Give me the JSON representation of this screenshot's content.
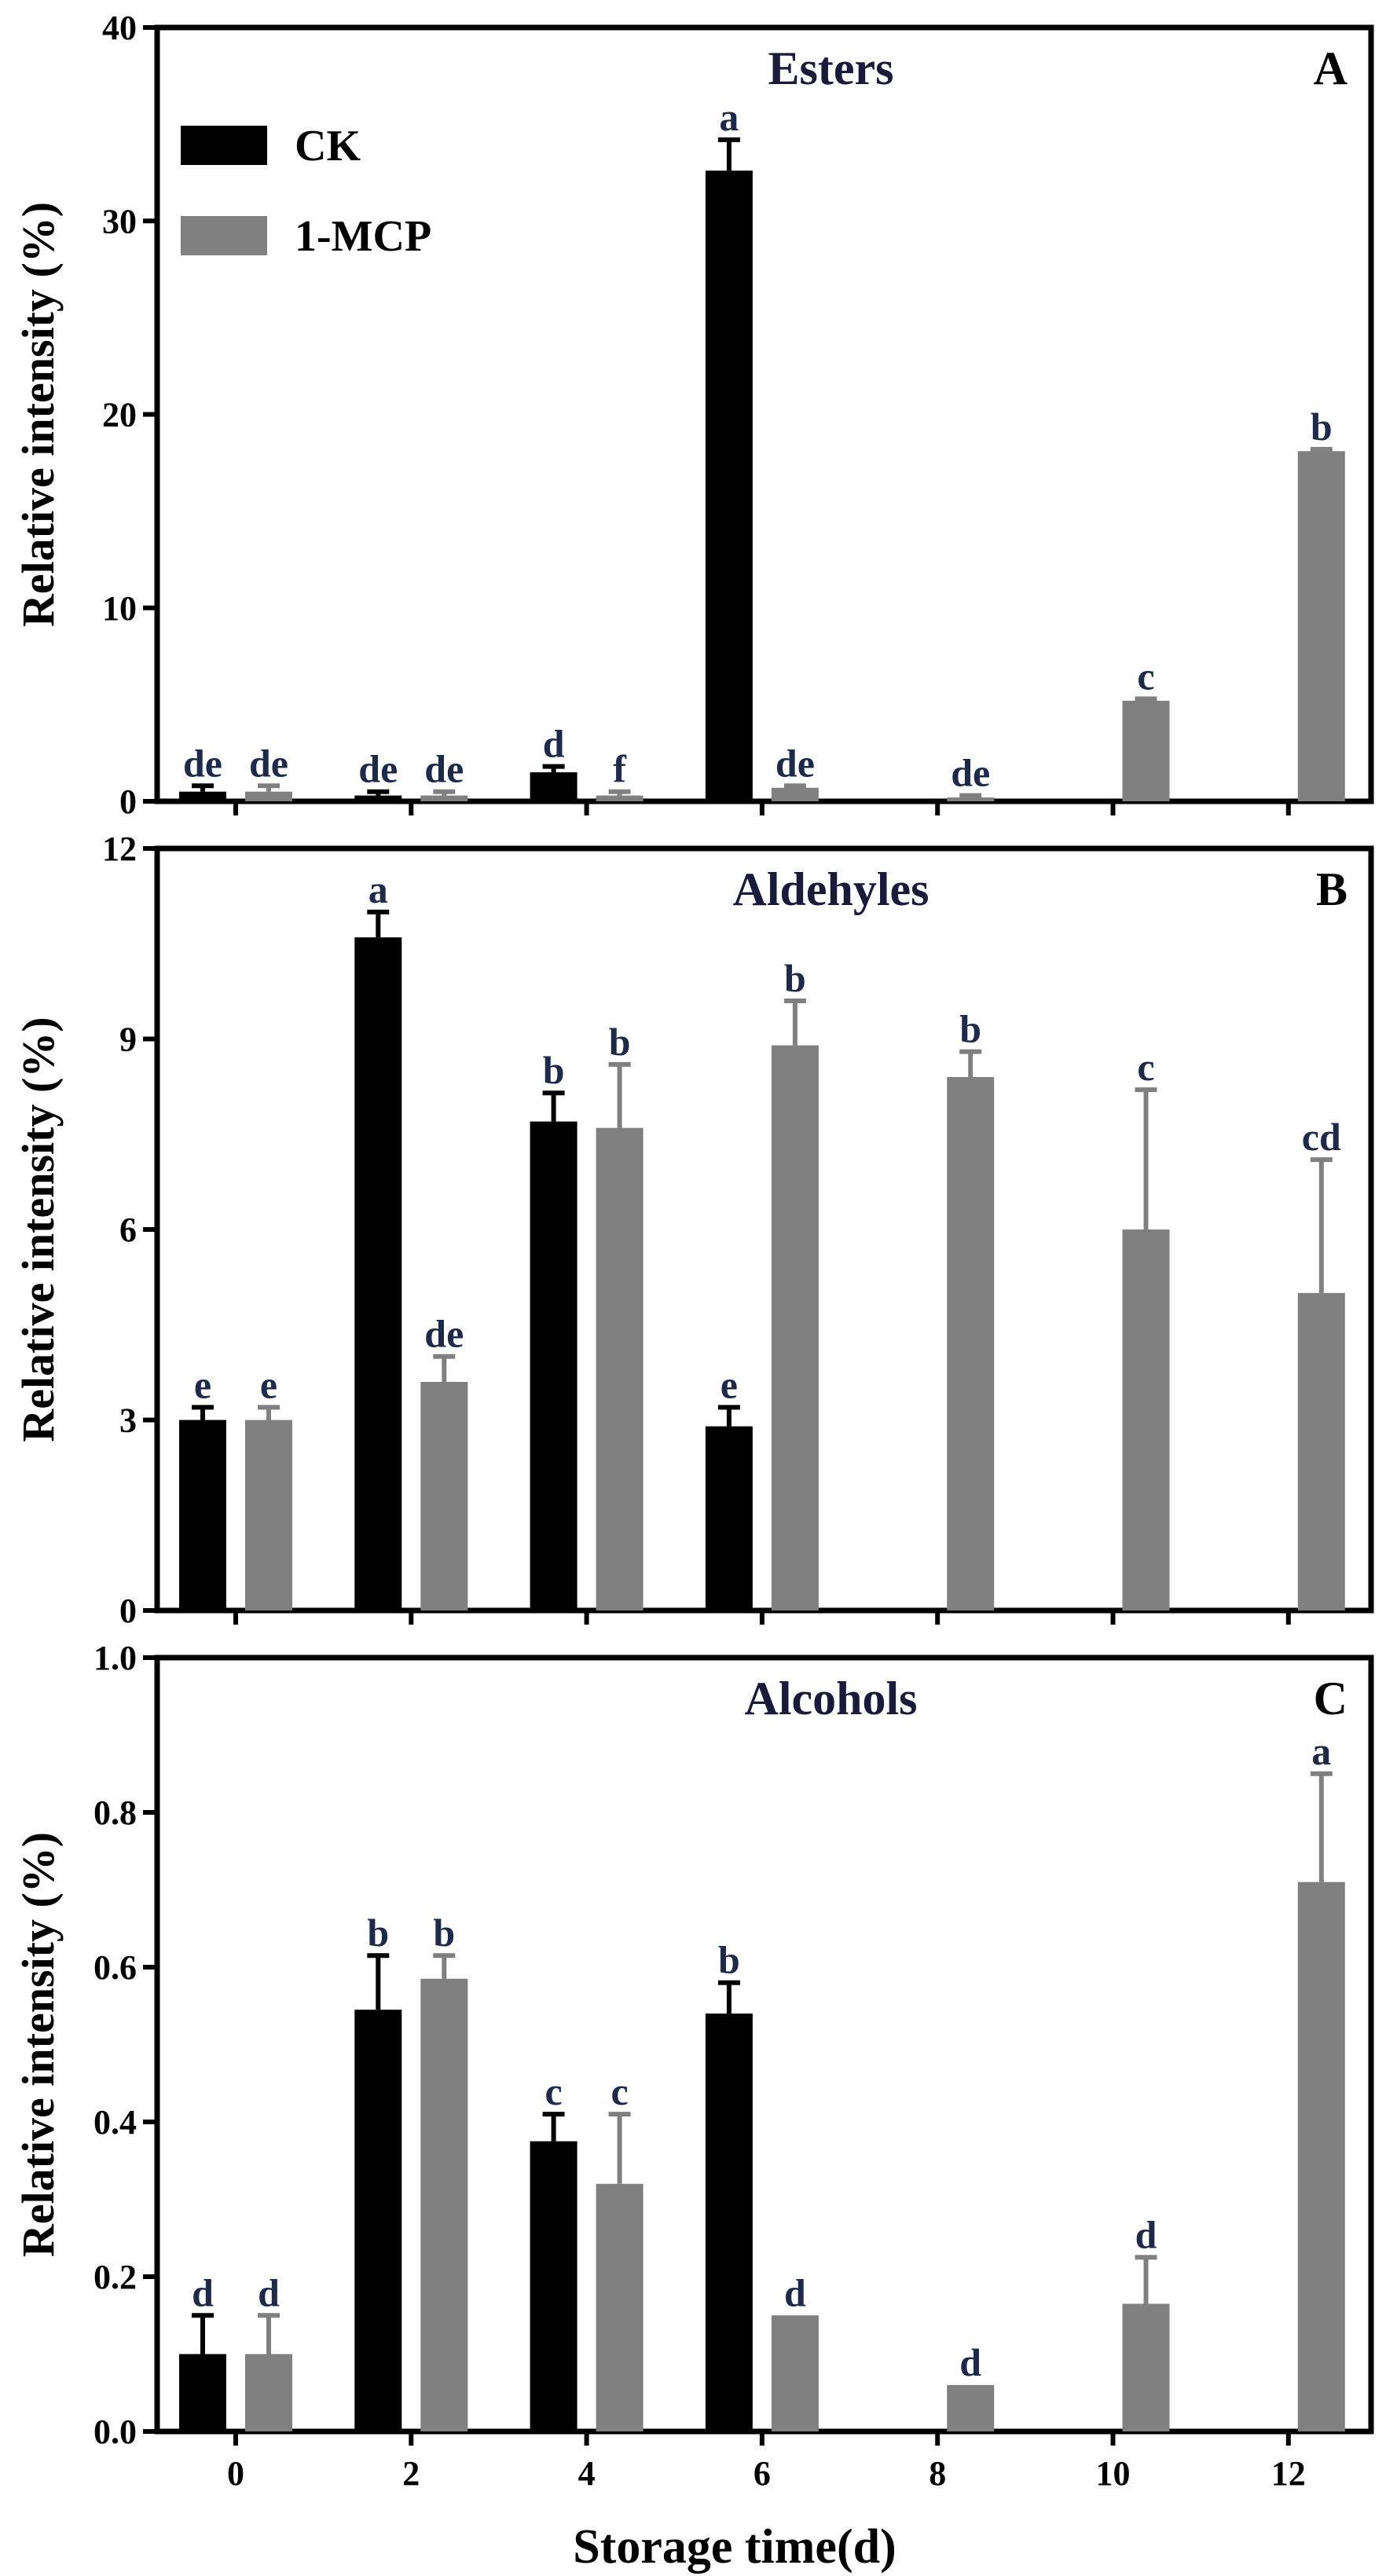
{
  "figure": {
    "xlabel": "Storage time(d)",
    "legend": {
      "placement": "top-left",
      "panel": 0
    }
  },
  "colors": {
    "ck": "#000000",
    "mcp": "#808080",
    "sig_text": "#1e2a4a",
    "axis": "#000000"
  },
  "chart_data": [
    {
      "type": "bar",
      "panel_letter": "A",
      "title": "Esters",
      "xlabel": "Storage time(d)",
      "ylabel": "Relative intensity (%)",
      "ylim": [
        0,
        40
      ],
      "yticks": [
        0,
        10,
        20,
        30,
        40
      ],
      "ytick_labels": [
        "0",
        "10",
        "20",
        "30",
        "40"
      ],
      "categories": [
        "0",
        "2",
        "4",
        "6",
        "8",
        "10",
        "12"
      ],
      "series": [
        {
          "name": "CK",
          "values": [
            0.5,
            0.3,
            1.5,
            32.6,
            null,
            null,
            null
          ],
          "errors": [
            0.3,
            0.2,
            0.3,
            1.6,
            null,
            null,
            null
          ],
          "labels": [
            "de",
            "de",
            "d",
            "a",
            null,
            null,
            null
          ]
        },
        {
          "name": "1-MCP",
          "values": [
            0.5,
            0.3,
            0.3,
            0.7,
            0.2,
            5.2,
            18.1
          ],
          "errors": [
            0.3,
            0.2,
            0.2,
            0.1,
            0.1,
            0.1,
            0.1
          ],
          "labels": [
            "de",
            "de",
            "f",
            "de",
            "de",
            "c",
            "b"
          ]
        }
      ]
    },
    {
      "type": "bar",
      "panel_letter": "B",
      "title": "Aldehyles",
      "xlabel": "Storage time(d)",
      "ylabel": "Relative intensity (%)",
      "ylim": [
        0,
        12
      ],
      "yticks": [
        0,
        3,
        6,
        9,
        12
      ],
      "ytick_labels": [
        "0",
        "3",
        "6",
        "9",
        "12"
      ],
      "categories": [
        "0",
        "2",
        "4",
        "6",
        "8",
        "10",
        "12"
      ],
      "series": [
        {
          "name": "CK",
          "values": [
            3.0,
            10.6,
            7.7,
            2.9,
            null,
            null,
            null
          ],
          "errors": [
            0.2,
            0.4,
            0.45,
            0.3,
            null,
            null,
            null
          ],
          "labels": [
            "e",
            "a",
            "b",
            "e",
            null,
            null,
            null
          ]
        },
        {
          "name": "1-MCP",
          "values": [
            3.0,
            3.6,
            7.6,
            8.9,
            8.4,
            6.0,
            5.0
          ],
          "errors": [
            0.2,
            0.4,
            1.0,
            0.7,
            0.4,
            2.2,
            2.1
          ],
          "labels": [
            "e",
            "de",
            "b",
            "b",
            "b",
            "c",
            "cd"
          ]
        }
      ]
    },
    {
      "type": "bar",
      "panel_letter": "C",
      "title": "Alcohols",
      "xlabel": "Storage time(d)",
      "ylabel": "Relative intensity (%)",
      "ylim": [
        0,
        1.0
      ],
      "yticks": [
        0,
        0.2,
        0.4,
        0.6,
        0.8,
        1.0
      ],
      "ytick_labels": [
        "0.0",
        "0.2",
        "0.4",
        "0.6",
        "0.8",
        "1.0"
      ],
      "categories": [
        "0",
        "2",
        "4",
        "6",
        "8",
        "10",
        "12"
      ],
      "series": [
        {
          "name": "CK",
          "values": [
            0.1,
            0.545,
            0.375,
            0.54,
            null,
            null,
            null
          ],
          "errors": [
            0.05,
            0.07,
            0.035,
            0.04,
            null,
            null,
            null
          ],
          "labels": [
            "d",
            "b",
            "c",
            "b",
            null,
            null,
            null
          ]
        },
        {
          "name": "1-MCP",
          "values": [
            0.1,
            0.585,
            0.32,
            0.15,
            0.06,
            0.165,
            0.71
          ],
          "errors": [
            0.05,
            0.03,
            0.09,
            0.0,
            0.0,
            0.06,
            0.14
          ],
          "labels": [
            "d",
            "b",
            "c",
            "d",
            "d",
            "d",
            "a"
          ]
        }
      ]
    }
  ]
}
